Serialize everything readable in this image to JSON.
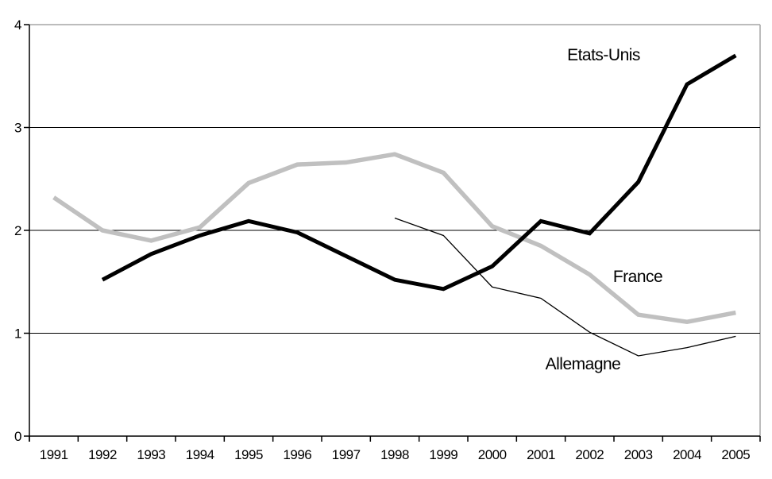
{
  "chart_data": {
    "type": "line",
    "title": "",
    "xlabel": "",
    "ylabel": "",
    "ylim": [
      0,
      4
    ],
    "y_ticks": [
      "0",
      "1",
      "2",
      "3",
      "4"
    ],
    "grid": true,
    "legend": "inline-series-labels",
    "background": "#ffffff",
    "axis_color": "#000000",
    "grid_color": "#000000",
    "plot_border_color": "#a6a6a6",
    "categories": [
      "1991",
      "1992",
      "1993",
      "1994",
      "1995",
      "1996",
      "1997",
      "1998",
      "1999",
      "2000",
      "2001",
      "2002",
      "2003",
      "2004",
      "2005"
    ],
    "series": [
      {
        "name": "France",
        "color": "#c0c0c0",
        "stroke_width": 5.5,
        "values": [
          2.32,
          2.0,
          1.9,
          2.03,
          2.46,
          2.64,
          2.66,
          2.74,
          2.56,
          2.04,
          1.85,
          1.57,
          1.18,
          1.11,
          1.2
        ]
      },
      {
        "name": "Allemagne",
        "color": "#000000",
        "stroke_width": 1.3,
        "values": [
          null,
          null,
          null,
          null,
          null,
          null,
          null,
          2.12,
          1.95,
          1.45,
          1.34,
          1.01,
          0.78,
          0.86,
          0.97
        ]
      },
      {
        "name": "Etats-Unis",
        "color": "#000000",
        "stroke_width": 5,
        "values": [
          null,
          1.52,
          1.77,
          1.95,
          2.09,
          1.98,
          1.75,
          1.52,
          1.43,
          1.65,
          2.09,
          1.97,
          2.47,
          3.42,
          3.7
        ]
      }
    ],
    "annotations": [
      {
        "text": "Etats-Unis",
        "x": 760,
        "y": 69
      },
      {
        "text": "France",
        "x": 803,
        "y": 348
      },
      {
        "text": "Allemagne",
        "x": 734,
        "y": 458
      }
    ]
  }
}
